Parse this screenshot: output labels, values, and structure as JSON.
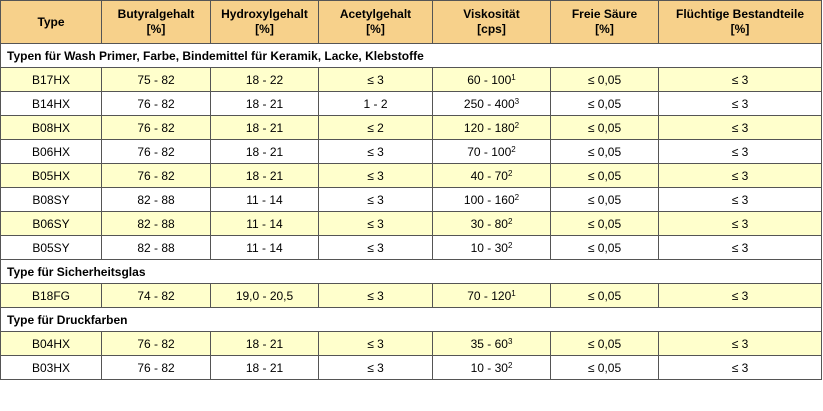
{
  "headers": [
    [
      "Type",
      ""
    ],
    [
      "Butyralgehalt",
      "[%]"
    ],
    [
      "Hydroxylgehalt",
      "[%]"
    ],
    [
      "Acetylgehalt",
      "[%]"
    ],
    [
      "Viskosität",
      "[cps]"
    ],
    [
      "Freie Säure",
      "[%]"
    ],
    [
      "Flüchtige Bestandteile",
      "[%]"
    ]
  ],
  "sections": [
    {
      "title": "Typen für Wash Primer, Farbe, Bindemittel für Keramik, Lacke, Klebstoffe",
      "rows": [
        {
          "type": "B17HX",
          "butyral": "75 - 82",
          "hydroxyl": "18 - 22",
          "acetyl": "≤ 3",
          "viscosity": "60 - 100",
          "viscosity_note": "1",
          "acid": "≤ 0,05",
          "volatile": "≤ 3"
        },
        {
          "type": "B14HX",
          "butyral": "76 - 82",
          "hydroxyl": "18 - 21",
          "acetyl": "1 - 2",
          "viscosity": "250 - 400",
          "viscosity_note": "3",
          "acid": "≤ 0,05",
          "volatile": "≤ 3"
        },
        {
          "type": "B08HX",
          "butyral": "76 - 82",
          "hydroxyl": "18 - 21",
          "acetyl": "≤ 2",
          "viscosity": "120 - 180",
          "viscosity_note": "2",
          "acid": "≤ 0,05",
          "volatile": "≤ 3"
        },
        {
          "type": "B06HX",
          "butyral": "76 - 82",
          "hydroxyl": "18 - 21",
          "acetyl": "≤ 3",
          "viscosity": "70 - 100",
          "viscosity_note": "2",
          "acid": "≤ 0,05",
          "volatile": "≤ 3"
        },
        {
          "type": "B05HX",
          "butyral": "76 - 82",
          "hydroxyl": "18 - 21",
          "acetyl": "≤ 3",
          "viscosity": "40 - 70",
          "viscosity_note": "2",
          "acid": "≤ 0,05",
          "volatile": "≤ 3"
        },
        {
          "type": "B08SY",
          "butyral": "82 - 88",
          "hydroxyl": "11 - 14",
          "acetyl": "≤ 3",
          "viscosity": "100 - 160",
          "viscosity_note": "2",
          "acid": "≤ 0,05",
          "volatile": "≤ 3"
        },
        {
          "type": "B06SY",
          "butyral": "82 - 88",
          "hydroxyl": "11 - 14",
          "acetyl": "≤ 3",
          "viscosity": "30 - 80",
          "viscosity_note": "2",
          "acid": "≤ 0,05",
          "volatile": "≤ 3"
        },
        {
          "type": "B05SY",
          "butyral": "82 - 88",
          "hydroxyl": "11 - 14",
          "acetyl": "≤ 3",
          "viscosity": "10 - 30",
          "viscosity_note": "2",
          "acid": "≤ 0,05",
          "volatile": "≤ 3"
        }
      ]
    },
    {
      "title": "Type für Sicherheitsglas",
      "rows": [
        {
          "type": "B18FG",
          "butyral": "74 - 82",
          "hydroxyl": "19,0 - 20,5",
          "acetyl": "≤ 3",
          "viscosity": "70 - 120",
          "viscosity_note": "1",
          "acid": "≤ 0,05",
          "volatile": "≤ 3"
        }
      ]
    },
    {
      "title": "Type für Druckfarben",
      "rows": [
        {
          "type": "B04HX",
          "butyral": "76 - 82",
          "hydroxyl": "18 - 21",
          "acetyl": "≤ 3",
          "viscosity": "35 - 60",
          "viscosity_note": "3",
          "acid": "≤ 0,05",
          "volatile": "≤ 3"
        },
        {
          "type": "B03HX",
          "butyral": "76 - 82",
          "hydroxyl": "18 - 21",
          "acetyl": "≤ 3",
          "viscosity": "10 - 30",
          "viscosity_note": "2",
          "acid": "≤ 0,05",
          "volatile": "≤ 3"
        }
      ]
    }
  ],
  "colors": {
    "header_bg": "#f7d18b",
    "shaded_row_bg": "#ffffcc",
    "plain_row_bg": "#ffffff",
    "border": "#555555"
  }
}
